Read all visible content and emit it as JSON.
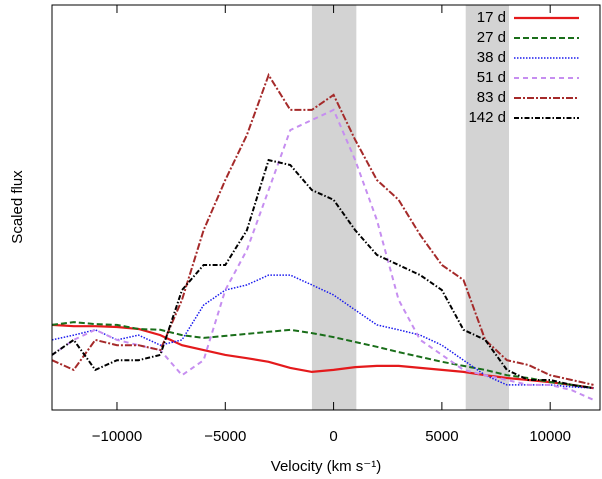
{
  "chart_data": {
    "type": "line",
    "xlabel": "Velocity (km s⁻¹)",
    "ylabel": "Scaled flux",
    "x": [
      -13000,
      -12000,
      -11000,
      -10000,
      -9000,
      -8000,
      -7000,
      -6000,
      -5000,
      -4000,
      -3000,
      -2000,
      -1000,
      0,
      1000,
      2000,
      3000,
      4000,
      5000,
      6000,
      7000,
      8000,
      9000,
      10000,
      11000,
      12000
    ],
    "series": [
      {
        "name": "17 d",
        "color": "#e41a1c",
        "dash": "none",
        "width": 2.2,
        "values": [
          21.0,
          20.7,
          20.7,
          20.5,
          20.0,
          18.5,
          16.0,
          14.8,
          13.6,
          12.8,
          11.9,
          10.4,
          9.4,
          9.9,
          10.6,
          10.9,
          10.9,
          10.4,
          9.9,
          9.4,
          8.6,
          7.9,
          7.4,
          6.9,
          6.2,
          5.4
        ]
      },
      {
        "name": "27 d",
        "color": "#1a6e1a",
        "dash": "6,3",
        "width": 2,
        "values": [
          21.0,
          21.7,
          21.2,
          21.0,
          20.0,
          19.8,
          18.5,
          17.8,
          18.3,
          18.8,
          19.3,
          19.8,
          19.0,
          18.0,
          16.8,
          15.6,
          14.3,
          13.1,
          11.9,
          10.9,
          9.9,
          8.6,
          7.9,
          6.9,
          6.2,
          5.4
        ]
      },
      {
        "name": "38 d",
        "color": "#1a1aee",
        "dash": "1.5,1.5",
        "width": 1.5,
        "values": [
          17.3,
          18.5,
          19.8,
          17.3,
          18.5,
          16.0,
          17.3,
          25.9,
          29.6,
          30.9,
          33.3,
          33.3,
          30.9,
          28.4,
          24.7,
          21.0,
          19.8,
          18.5,
          16.0,
          12.3,
          8.6,
          6.2,
          6.2,
          6.2,
          5.7,
          5.4
        ]
      },
      {
        "name": "51 d",
        "color": "#c68ef0",
        "dash": "5,4",
        "width": 2,
        "values": [
          13.6,
          17.3,
          19.8,
          17.3,
          16.0,
          14.8,
          8.6,
          12.3,
          29.6,
          39.5,
          54.3,
          69.1,
          71.6,
          74.1,
          61.7,
          46.9,
          27.2,
          17.3,
          13.6,
          9.9,
          8.6,
          7.4,
          6.2,
          6.2,
          4.9,
          2.5
        ]
      },
      {
        "name": "83 d",
        "color": "#a52a2a",
        "dash": "7,2,2,2",
        "width": 2,
        "values": [
          12.3,
          9.9,
          17.3,
          16.0,
          16.0,
          14.8,
          27.2,
          44.4,
          56.8,
          67.9,
          82.7,
          74.1,
          74.1,
          77.8,
          66.7,
          56.8,
          51.9,
          43.2,
          35.8,
          32.1,
          17.3,
          12.3,
          11.1,
          8.6,
          7.4,
          6.2
        ]
      },
      {
        "name": "142 d",
        "color": "#000000",
        "dash": "5,2,1.5,2",
        "width": 2,
        "values": [
          13.6,
          17.3,
          9.9,
          12.3,
          12.3,
          13.6,
          29.6,
          35.8,
          35.8,
          44.4,
          61.7,
          60.5,
          54.3,
          51.9,
          44.4,
          38.3,
          35.8,
          33.3,
          29.6,
          19.8,
          17.3,
          9.9,
          7.4,
          7.4,
          6.2,
          5.4
        ]
      }
    ],
    "bands": [
      [
        -1000,
        1050
      ],
      [
        6100,
        8100
      ]
    ],
    "band_color": "#d3d3d3",
    "xlim": [
      -13000,
      12300
    ],
    "ylim": [
      0,
      100
    ],
    "xticks": [
      {
        "value": -10000,
        "label": "−10000"
      },
      {
        "value": -5000,
        "label": "−5000"
      },
      0,
      5000,
      10000
    ],
    "legend": "upper right"
  }
}
